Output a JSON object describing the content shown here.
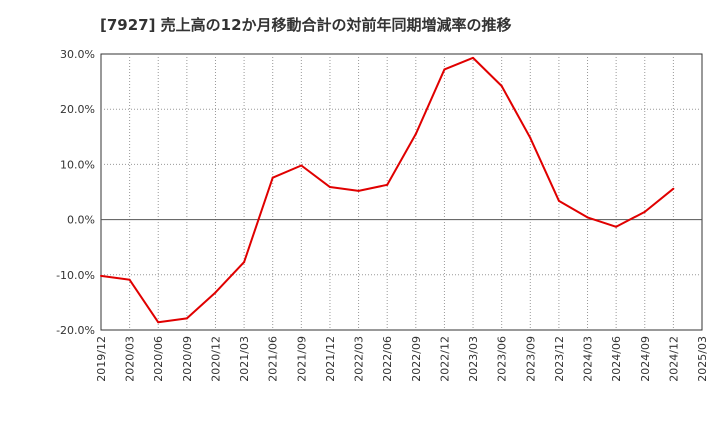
{
  "chart_data": {
    "type": "line",
    "title": "[7927]  売上高の12か月移動合計の対前年同期増減率の推移",
    "xlabel": "",
    "ylabel": "",
    "ylim": [
      -20,
      30
    ],
    "y_ticks": [
      "30.0%",
      "20.0%",
      "10.0%",
      "0.0%",
      "-10.0%",
      "-20.0%"
    ],
    "y_tick_values": [
      30,
      20,
      10,
      0,
      -10,
      -20
    ],
    "x_tick_labels": [
      "2019/12",
      "2020/03",
      "2020/06",
      "2020/09",
      "2020/12",
      "2021/03",
      "2021/06",
      "2021/09",
      "2021/12",
      "2022/03",
      "2022/06",
      "2022/09",
      "2022/12",
      "2023/03",
      "2023/06",
      "2023/09",
      "2023/12",
      "2024/03",
      "2024/06",
      "2024/09",
      "2024/12",
      "2025/03"
    ],
    "grid": true,
    "series": [
      {
        "name": "対前年同期増減率",
        "color": "#e00000",
        "x": [
          "2019/12",
          "2020/03",
          "2020/06",
          "2020/09",
          "2020/12",
          "2021/03",
          "2021/06",
          "2021/09",
          "2021/12",
          "2022/03",
          "2022/06",
          "2022/09",
          "2022/12",
          "2023/03",
          "2023/06",
          "2023/09",
          "2023/12",
          "2024/03",
          "2024/06",
          "2024/09",
          "2024/12"
        ],
        "values": [
          -10.2,
          -10.9,
          -18.6,
          -17.9,
          -13.2,
          -7.7,
          7.6,
          9.8,
          5.9,
          5.2,
          6.3,
          15.5,
          27.2,
          29.3,
          24.2,
          14.8,
          3.4,
          0.4,
          -1.3,
          1.4,
          5.6
        ]
      }
    ]
  }
}
